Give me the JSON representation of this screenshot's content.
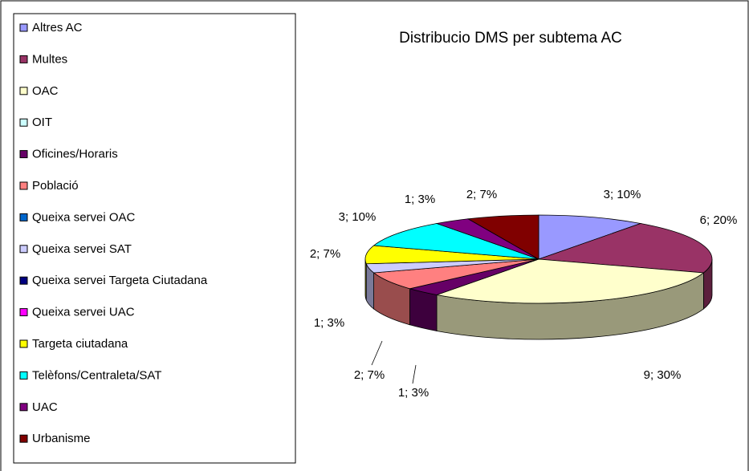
{
  "chart_data": {
    "type": "pie3d",
    "title": "Distribucio DMS per subtema AC",
    "categories": [
      "Altres AC",
      "Multes",
      "OAC",
      "OIT",
      "Oficines/Horaris",
      "Població",
      "Queixa servei OAC",
      "Queixa servei SAT",
      "Queixa servei Targeta Ciutadana",
      "Queixa servei UAC",
      "Targeta ciutadana",
      "Telèfons/Centraleta/SAT",
      "UAC",
      "Urbanisme"
    ],
    "values": [
      3,
      6,
      9,
      0,
      1,
      2,
      0,
      1,
      0,
      0,
      2,
      3,
      1,
      2
    ],
    "value_labels": [
      "3; 10%",
      "6; 20%",
      "9; 30%",
      null,
      "1; 3%",
      "2; 7%",
      null,
      "1; 3%",
      null,
      null,
      "2; 7%",
      "3; 10%",
      "1; 3%",
      "2; 7%"
    ],
    "colors": [
      "#9999ff",
      "#993366",
      "#ffffcc",
      "#ccffff",
      "#660066",
      "#ff8080",
      "#0066cc",
      "#ccccff",
      "#000080",
      "#ff00ff",
      "#ffff00",
      "#00ffff",
      "#800080",
      "#800000"
    ],
    "legend": "left"
  }
}
